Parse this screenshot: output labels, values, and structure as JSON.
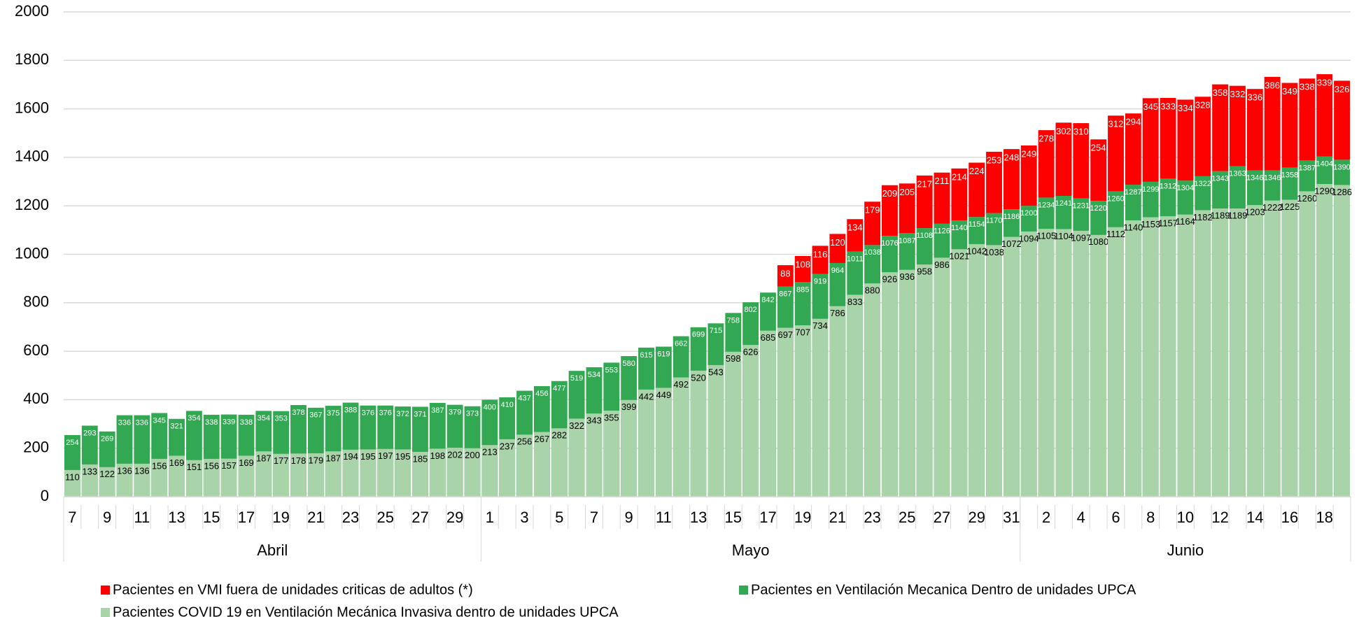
{
  "chart_data": {
    "type": "bar",
    "categories": [
      "7",
      null,
      "9",
      null,
      "11",
      null,
      "13",
      null,
      "15",
      null,
      "17",
      null,
      "19",
      null,
      "21",
      null,
      "23",
      null,
      "25",
      null,
      "27",
      null,
      "29",
      null,
      "1",
      null,
      "3",
      null,
      "5",
      null,
      "7",
      null,
      "9",
      null,
      "11",
      null,
      "13",
      null,
      "15",
      null,
      "17",
      null,
      "19",
      null,
      "21",
      null,
      "23",
      null,
      "25",
      null,
      "27",
      null,
      "29",
      null,
      "31",
      null,
      "2",
      null,
      "4",
      null,
      "6",
      null,
      "8",
      null,
      "10",
      null,
      "12",
      null,
      "14",
      null,
      "16",
      null,
      "18",
      null
    ],
    "x_groups": [
      {
        "label": "Abril",
        "size": 24
      },
      {
        "label": "Mayo",
        "size": 31
      },
      {
        "label": "Junio",
        "size": 19
      }
    ],
    "series": [
      {
        "name": "Pacientes en VMI fuera de unidades criticas de adultos (*)",
        "color": "#ff0000",
        "values": [
          null,
          null,
          null,
          null,
          null,
          null,
          null,
          null,
          null,
          null,
          null,
          null,
          null,
          null,
          null,
          null,
          null,
          null,
          null,
          null,
          null,
          null,
          null,
          null,
          null,
          null,
          null,
          null,
          null,
          null,
          null,
          null,
          null,
          null,
          null,
          null,
          null,
          null,
          null,
          null,
          null,
          88,
          108,
          116,
          120,
          134,
          179,
          209,
          205,
          217,
          211,
          214,
          224,
          253,
          248,
          249,
          278,
          302,
          310,
          254,
          312,
          294,
          345,
          333,
          334,
          328,
          358,
          332,
          336,
          386,
          349,
          338,
          339,
          326
        ]
      },
      {
        "name": "Pacientes en Ventilación Mecanica Dentro de unidades UPCA",
        "color": "#33a852",
        "values": [
          254,
          293,
          269,
          336,
          336,
          345,
          321,
          354,
          338,
          339,
          338,
          354,
          353,
          378,
          367,
          375,
          388,
          376,
          376,
          372,
          371,
          387,
          379,
          373,
          400,
          410,
          437,
          456,
          477,
          519,
          534,
          553,
          580,
          615,
          619,
          662,
          699,
          715,
          758,
          802,
          842,
          867,
          885,
          919,
          964,
          1011,
          1038,
          1076,
          1087,
          1108,
          1126,
          1140,
          1154,
          1170,
          1186,
          1200,
          1234,
          1241,
          1231,
          1220,
          1260,
          1287,
          1299,
          1312,
          1304,
          1322,
          1343,
          1363,
          1346,
          1346,
          1358,
          1387,
          1404,
          1390
        ]
      },
      {
        "name": "Pacientes COVID 19 en Ventilación Mecánica Invasiva dentro de unidades UPCA",
        "color": "#a9d3a9",
        "values": [
          110,
          133,
          122,
          136,
          136,
          156,
          169,
          151,
          156,
          157,
          169,
          187,
          177,
          178,
          179,
          187,
          194,
          195,
          197,
          195,
          185,
          198,
          202,
          200,
          213,
          237,
          256,
          267,
          282,
          322,
          343,
          355,
          399,
          442,
          449,
          492,
          520,
          543,
          598,
          626,
          685,
          697,
          707,
          734,
          786,
          833,
          880,
          926,
          936,
          958,
          986,
          1021,
          1042,
          1038,
          1072,
          1094,
          1105,
          1104,
          1097,
          1080,
          1112,
          1140,
          1153,
          1157,
          1164,
          1182,
          1189,
          1189,
          1203,
          1222,
          1225,
          1260,
          1290,
          1286
        ]
      }
    ],
    "ylim": [
      0,
      2000
    ],
    "yticks": [
      0,
      200,
      400,
      600,
      800,
      1000,
      1200,
      1400,
      1600,
      1800,
      2000
    ],
    "grid": true
  }
}
